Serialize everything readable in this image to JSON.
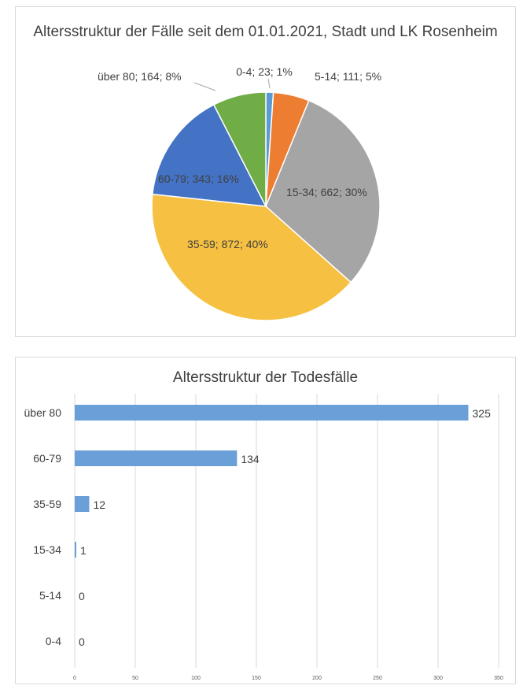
{
  "chart_data": [
    {
      "type": "pie",
      "title": "Altersstruktur der Fälle seit dem 01.01.2021, Stadt und LK Rosenheim",
      "slices": [
        {
          "name": "0-4",
          "value": 23,
          "percent": "1%",
          "label": "0-4; 23; 1%",
          "color": "#5b9bd5"
        },
        {
          "name": "5-14",
          "value": 111,
          "percent": "5%",
          "label": "5-14; 111; 5%",
          "color": "#ed7d31"
        },
        {
          "name": "15-34",
          "value": 662,
          "percent": "30%",
          "label": "15-34; 662; 30%",
          "color": "#a5a5a5"
        },
        {
          "name": "35-59",
          "value": 872,
          "percent": "40%",
          "label": "35-59; 872; 40%",
          "color": "#f6c142"
        },
        {
          "name": "60-79",
          "value": 343,
          "percent": "16%",
          "label": "60-79; 343; 16%",
          "color": "#4472c4"
        },
        {
          "name": "über 80",
          "value": 164,
          "percent": "8%",
          "label": "über 80; 164; 8%",
          "color": "#70ad47"
        }
      ]
    },
    {
      "type": "bar",
      "orientation": "horizontal",
      "title": "Altersstruktur der Todesfälle",
      "categories": [
        "über 80",
        "60-79",
        "35-59",
        "15-34",
        "5-14",
        "0-4"
      ],
      "values": [
        325,
        134,
        12,
        1,
        0,
        0
      ],
      "value_labels": [
        "325",
        "134",
        "12",
        "1",
        "0",
        "0"
      ],
      "xlim": [
        0,
        350
      ],
      "xticks": [
        "0",
        "50",
        "100",
        "150",
        "200",
        "250",
        "300",
        "350"
      ],
      "grid": "vertical",
      "bar_color": "#6a9fd8"
    }
  ]
}
